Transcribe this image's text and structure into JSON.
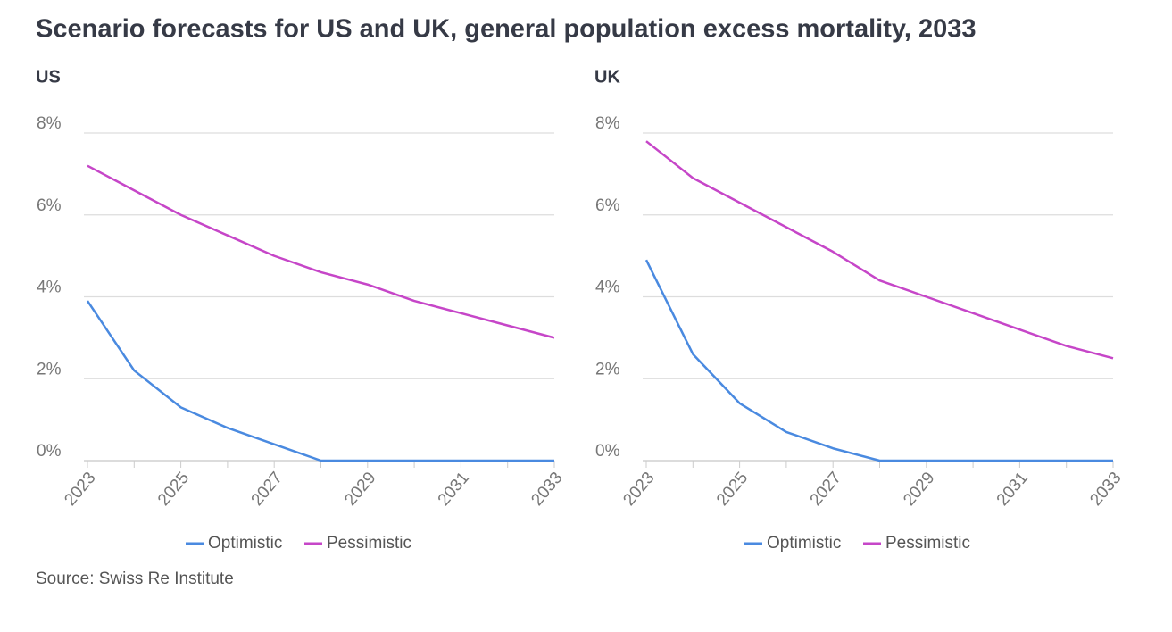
{
  "title": "Scenario forecasts for US and UK, general population excess mortality, 2033",
  "source": "Source: Swiss Re Institute",
  "chart_data": [
    {
      "type": "line",
      "subtitle": "US",
      "x": [
        2023,
        2024,
        2025,
        2026,
        2027,
        2028,
        2029,
        2030,
        2031,
        2032,
        2033
      ],
      "xlim": [
        2023,
        2033
      ],
      "xticks": [
        2023,
        2025,
        2027,
        2029,
        2031,
        2033
      ],
      "ylim": [
        0,
        8
      ],
      "yticks": [
        {
          "value": 0,
          "label": "0%"
        },
        {
          "value": 2,
          "label": "2%"
        },
        {
          "value": 4,
          "label": "4%"
        },
        {
          "value": 6,
          "label": "6%"
        },
        {
          "value": 8,
          "label": "8%"
        }
      ],
      "grid": true,
      "series": [
        {
          "name": "Optimistic",
          "color": "#4a8ae0",
          "values": [
            3.9,
            2.2,
            1.3,
            0.8,
            0.4,
            0,
            0,
            0,
            0,
            0,
            0
          ]
        },
        {
          "name": "Pessimistic",
          "color": "#c646c8",
          "values": [
            7.2,
            6.6,
            6.0,
            5.5,
            5.0,
            4.6,
            4.3,
            3.9,
            3.6,
            3.3,
            3.0
          ]
        }
      ]
    },
    {
      "type": "line",
      "subtitle": "UK",
      "x": [
        2023,
        2024,
        2025,
        2026,
        2027,
        2028,
        2029,
        2030,
        2031,
        2032,
        2033
      ],
      "xlim": [
        2023,
        2033
      ],
      "xticks": [
        2023,
        2025,
        2027,
        2029,
        2031,
        2033
      ],
      "ylim": [
        0,
        8
      ],
      "yticks": [
        {
          "value": 0,
          "label": "0%"
        },
        {
          "value": 2,
          "label": "2%"
        },
        {
          "value": 4,
          "label": "4%"
        },
        {
          "value": 6,
          "label": "6%"
        },
        {
          "value": 8,
          "label": "8%"
        }
      ],
      "grid": true,
      "series": [
        {
          "name": "Optimistic",
          "color": "#4a8ae0",
          "values": [
            4.9,
            2.6,
            1.4,
            0.7,
            0.3,
            0,
            0,
            0,
            0,
            0,
            0
          ]
        },
        {
          "name": "Pessimistic",
          "color": "#c646c8",
          "values": [
            7.8,
            6.9,
            6.3,
            5.7,
            5.1,
            4.4,
            4.0,
            3.6,
            3.2,
            2.8,
            2.5
          ]
        }
      ]
    }
  ]
}
